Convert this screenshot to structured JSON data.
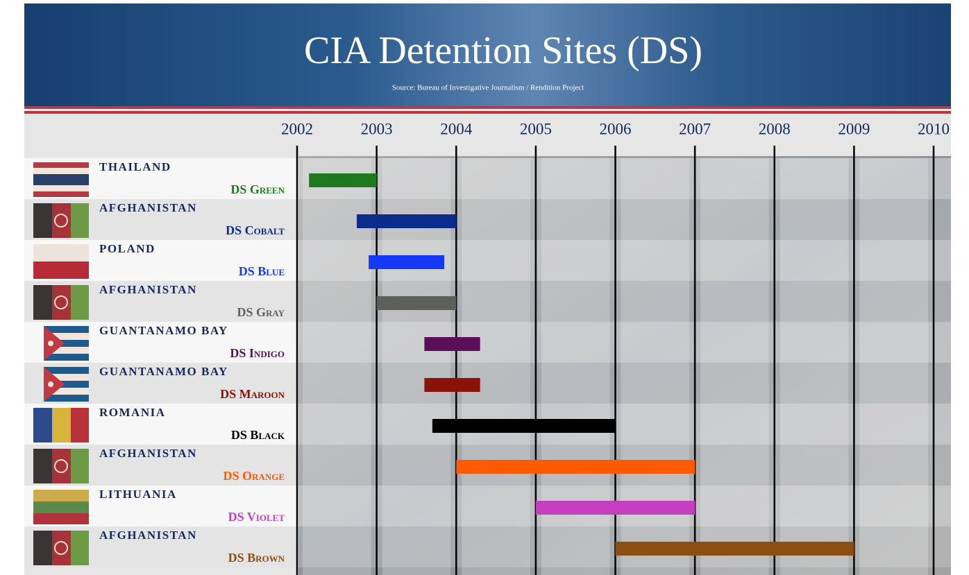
{
  "chart_data": {
    "type": "gantt",
    "title": "CIA Detention Sites (DS)",
    "subtitle": "Source: Bureau of Investigative Journalism / Rendition Project",
    "xlim": [
      2002,
      2010
    ],
    "xticks": [
      2002,
      2003,
      2004,
      2005,
      2006,
      2007,
      2008,
      2009,
      2010
    ],
    "series": [
      {
        "country": "THAILAND",
        "name": "DS Green",
        "color": "#1e7a1e",
        "start": 2002.15,
        "end": 2003.0
      },
      {
        "country": "AFGHANISTAN",
        "name": "DS Cobalt",
        "color": "#0a2c8c",
        "start": 2002.75,
        "end": 2004.0
      },
      {
        "country": "POLAND",
        "name": "DS Blue",
        "color": "#1438f5",
        "start": 2002.9,
        "end": 2003.85
      },
      {
        "country": "AFGHANISTAN",
        "name": "DS Gray",
        "color": "#5f5f5b",
        "start": 2003.0,
        "end": 2004.0
      },
      {
        "country": "GUANTANAMO BAY",
        "name": "DS Indigo",
        "color": "#5a0f5a",
        "start": 2003.6,
        "end": 2004.3
      },
      {
        "country": "GUANTANAMO BAY",
        "name": "DS Maroon",
        "color": "#8b1208",
        "start": 2003.6,
        "end": 2004.3
      },
      {
        "country": "ROMANIA",
        "name": "DS Black",
        "color": "#000000",
        "start": 2003.7,
        "end": 2006.0
      },
      {
        "country": "AFGHANISTAN",
        "name": "DS Orange",
        "color": "#ff5a00",
        "start": 2004.0,
        "end": 2007.0
      },
      {
        "country": "LITHUANIA",
        "name": "DS Violet",
        "color": "#c43fc0",
        "start": 2005.0,
        "end": 2007.0
      },
      {
        "country": "AFGHANISTAN",
        "name": "DS Brown",
        "color": "#8b4f12",
        "start": 2006.0,
        "end": 2009.0
      }
    ]
  }
}
